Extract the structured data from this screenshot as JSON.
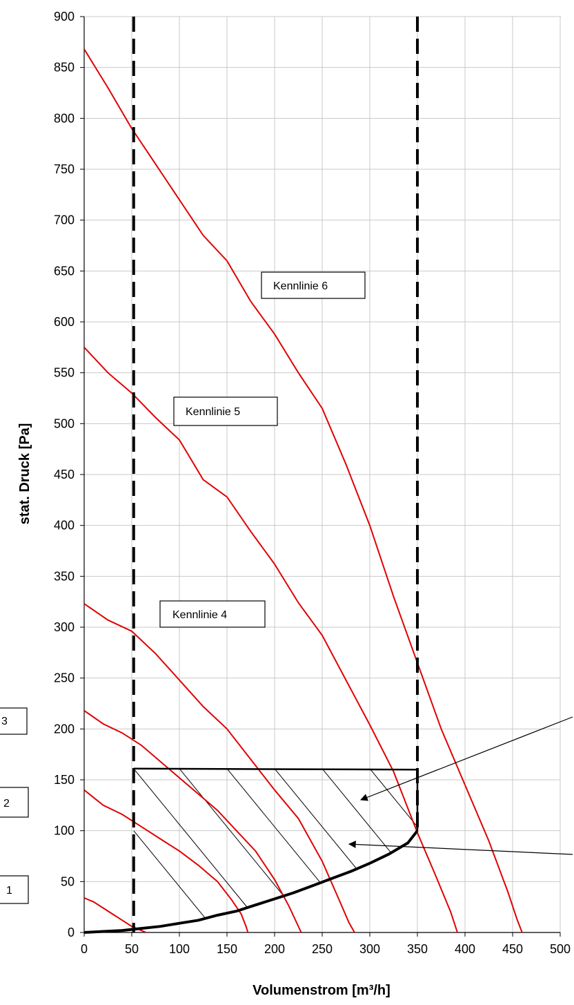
{
  "chart_data": {
    "type": "line",
    "xlabel": "Volumenstrom [m³/h]",
    "ylabel": "stat. Druck [Pa]",
    "xlim": [
      0,
      500
    ],
    "ylim": [
      0,
      900
    ],
    "x_ticks": [
      0,
      50,
      100,
      150,
      200,
      250,
      300,
      350,
      400,
      450,
      500
    ],
    "y_ticks": [
      0,
      50,
      100,
      150,
      200,
      250,
      300,
      350,
      400,
      450,
      500,
      550,
      600,
      650,
      700,
      750,
      800,
      850,
      900
    ],
    "grid": true,
    "curve_color": "#e00000",
    "system_color": "#000000",
    "series": [
      {
        "key": "k1",
        "x": [
          0,
          10,
          20,
          30,
          40,
          50,
          60,
          65
        ],
        "y": [
          34,
          30,
          24,
          18,
          12,
          6,
          2,
          0
        ]
      },
      {
        "key": "k2",
        "x": [
          0,
          20,
          40,
          60,
          80,
          100,
          120,
          140,
          155,
          165,
          170,
          172
        ],
        "y": [
          140,
          125,
          116,
          104,
          92,
          80,
          66,
          50,
          32,
          18,
          6,
          0
        ]
      },
      {
        "key": "k3",
        "x": [
          0,
          20,
          40,
          60,
          80,
          100,
          120,
          140,
          160,
          180,
          200,
          215,
          228
        ],
        "y": [
          218,
          205,
          196,
          184,
          168,
          152,
          136,
          120,
          100,
          80,
          52,
          26,
          0
        ]
      },
      {
        "key": "k4",
        "x": [
          0,
          25,
          50,
          75,
          100,
          125,
          150,
          175,
          200,
          225,
          250,
          265,
          278,
          284
        ],
        "y": [
          323,
          307,
          296,
          274,
          248,
          222,
          200,
          170,
          140,
          112,
          70,
          38,
          10,
          0
        ]
      },
      {
        "key": "k5",
        "x": [
          0,
          25,
          50,
          75,
          100,
          125,
          150,
          175,
          200,
          225,
          250,
          275,
          300,
          325,
          350,
          370,
          385,
          392
        ],
        "y": [
          575,
          550,
          530,
          506,
          484,
          445,
          428,
          394,
          362,
          324,
          292,
          248,
          204,
          158,
          98,
          54,
          20,
          0
        ]
      },
      {
        "key": "k6",
        "x": [
          0,
          25,
          50,
          75,
          100,
          125,
          150,
          175,
          200,
          225,
          250,
          275,
          300,
          325,
          350,
          375,
          400,
          425,
          445,
          455,
          460
        ],
        "y": [
          868,
          830,
          790,
          755,
          720,
          685,
          660,
          620,
          588,
          550,
          515,
          460,
          400,
          330,
          265,
          200,
          145,
          90,
          40,
          12,
          0
        ]
      }
    ],
    "system_curve": {
      "x": [
        0,
        20,
        40,
        60,
        80,
        100,
        120,
        140,
        160,
        180,
        200,
        220,
        240,
        260,
        280,
        300,
        320,
        340,
        350
      ],
      "y": [
        0,
        1,
        2,
        4,
        6,
        9,
        12,
        17,
        21,
        27,
        33,
        39,
        46,
        53,
        60,
        68,
        77,
        88,
        100
      ]
    },
    "upper_limit": {
      "x": [
        52,
        350
      ],
      "y": [
        161,
        160
      ]
    },
    "lower_limit_x": 52,
    "upper_limit_x": 350,
    "lower_boundary": {
      "x": [
        52,
        52
      ],
      "y": [
        100,
        161
      ]
    },
    "labels": [
      {
        "key": "kl6",
        "text": "Kennlinie 6"
      },
      {
        "key": "kl5",
        "text": "Kennlinie 5"
      },
      {
        "key": "kl4",
        "text": "Kennlinie 4"
      },
      {
        "key": "l3",
        "text": "3"
      },
      {
        "key": "l2",
        "text": "2"
      },
      {
        "key": "l1",
        "text": "1"
      }
    ]
  }
}
